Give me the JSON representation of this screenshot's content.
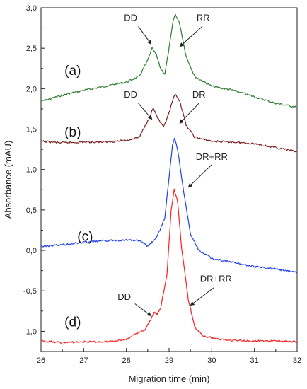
{
  "chart_data": {
    "type": "line",
    "xlabel": "Migration time (min)",
    "ylabel": "Absorbance (mAU)",
    "xlim": [
      26,
      32
    ],
    "ylim": [
      -1.25,
      3.0
    ],
    "x_ticks": [
      "26",
      "27",
      "28",
      "29",
      "30",
      "31",
      "32"
    ],
    "y_ticks": [
      {
        "v": -1.0,
        "label": "-1,0"
      },
      {
        "v": -0.5,
        "label": "-0,5"
      },
      {
        "v": 0.0,
        "label": "0,0"
      },
      {
        "v": 0.5,
        "label": "0,5"
      },
      {
        "v": 1.0,
        "label": "1,0"
      },
      {
        "v": 1.5,
        "label": "1,5"
      },
      {
        "v": 2.0,
        "label": "2,0"
      },
      {
        "v": 2.5,
        "label": "2,5"
      },
      {
        "v": 3.0,
        "label": "3,0"
      }
    ],
    "series": [
      {
        "label": "(a)",
        "color": "#2e7d32",
        "points": [
          [
            26.0,
            1.84
          ],
          [
            26.5,
            1.92
          ],
          [
            27.0,
            1.98
          ],
          [
            27.5,
            2.03
          ],
          [
            28.0,
            2.08
          ],
          [
            28.3,
            2.15
          ],
          [
            28.5,
            2.35
          ],
          [
            28.6,
            2.5
          ],
          [
            28.7,
            2.42
          ],
          [
            28.8,
            2.25
          ],
          [
            28.9,
            2.18
          ],
          [
            29.0,
            2.5
          ],
          [
            29.1,
            2.85
          ],
          [
            29.15,
            2.92
          ],
          [
            29.25,
            2.8
          ],
          [
            29.4,
            2.4
          ],
          [
            29.6,
            2.15
          ],
          [
            30.0,
            2.03
          ],
          [
            30.5,
            1.98
          ],
          [
            31.0,
            1.9
          ],
          [
            31.5,
            1.82
          ],
          [
            32.0,
            1.77
          ]
        ]
      },
      {
        "label": "(b)",
        "color": "#7b1f1f",
        "points": [
          [
            26.0,
            1.35
          ],
          [
            26.5,
            1.33
          ],
          [
            27.0,
            1.34
          ],
          [
            27.5,
            1.34
          ],
          [
            28.0,
            1.36
          ],
          [
            28.3,
            1.4
          ],
          [
            28.5,
            1.6
          ],
          [
            28.63,
            1.76
          ],
          [
            28.75,
            1.62
          ],
          [
            28.87,
            1.52
          ],
          [
            29.0,
            1.7
          ],
          [
            29.1,
            1.88
          ],
          [
            29.15,
            1.92
          ],
          [
            29.25,
            1.85
          ],
          [
            29.4,
            1.55
          ],
          [
            29.6,
            1.4
          ],
          [
            30.0,
            1.35
          ],
          [
            30.5,
            1.34
          ],
          [
            31.0,
            1.32
          ],
          [
            31.5,
            1.27
          ],
          [
            32.0,
            1.22
          ]
        ]
      },
      {
        "label": "(c)",
        "color": "#1f3ff0",
        "points": [
          [
            26.0,
            0.05
          ],
          [
            26.5,
            0.07
          ],
          [
            27.0,
            0.1
          ],
          [
            27.5,
            0.12
          ],
          [
            28.0,
            0.13
          ],
          [
            28.3,
            0.12
          ],
          [
            28.5,
            0.05
          ],
          [
            28.7,
            0.15
          ],
          [
            28.9,
            0.4
          ],
          [
            29.0,
            0.9
          ],
          [
            29.08,
            1.3
          ],
          [
            29.13,
            1.39
          ],
          [
            29.2,
            1.25
          ],
          [
            29.35,
            0.7
          ],
          [
            29.5,
            0.2
          ],
          [
            29.7,
            0.0
          ],
          [
            30.0,
            -0.1
          ],
          [
            30.5,
            -0.15
          ],
          [
            31.0,
            -0.2
          ],
          [
            31.5,
            -0.23
          ],
          [
            32.0,
            -0.27
          ]
        ]
      },
      {
        "label": "(d)",
        "color": "#ff2020",
        "points": [
          [
            26.0,
            -1.12
          ],
          [
            26.5,
            -1.14
          ],
          [
            27.0,
            -1.13
          ],
          [
            27.5,
            -1.13
          ],
          [
            28.0,
            -1.1
          ],
          [
            28.2,
            -1.03
          ],
          [
            28.4,
            -1.0
          ],
          [
            28.55,
            -0.88
          ],
          [
            28.65,
            -0.77
          ],
          [
            28.72,
            -0.79
          ],
          [
            28.8,
            -0.72
          ],
          [
            28.95,
            -0.3
          ],
          [
            29.05,
            0.5
          ],
          [
            29.12,
            0.75
          ],
          [
            29.2,
            0.6
          ],
          [
            29.3,
            0.0
          ],
          [
            29.45,
            -0.6
          ],
          [
            29.6,
            -0.95
          ],
          [
            29.8,
            -1.06
          ],
          [
            30.2,
            -1.1
          ],
          [
            30.5,
            -1.11
          ],
          [
            31.0,
            -1.12
          ],
          [
            31.5,
            -1.12
          ],
          [
            32.0,
            -1.13
          ]
        ]
      }
    ],
    "annotations": [
      {
        "text": "DD",
        "tx": 28.1,
        "ty": 2.84,
        "ax1": 28.28,
        "ay1": 2.77,
        "ax2": 28.58,
        "ay2": 2.55
      },
      {
        "text": "RR",
        "tx": 29.8,
        "ty": 2.84,
        "ax1": 29.78,
        "ay1": 2.77,
        "ax2": 29.25,
        "ay2": 2.52
      },
      {
        "text": "DD",
        "tx": 28.1,
        "ty": 1.89,
        "ax1": 28.28,
        "ay1": 1.82,
        "ax2": 28.6,
        "ay2": 1.62
      },
      {
        "text": "DR",
        "tx": 29.7,
        "ty": 1.89,
        "ax1": 29.7,
        "ay1": 1.82,
        "ax2": 29.25,
        "ay2": 1.57
      },
      {
        "text": "DR+RR",
        "tx": 30.0,
        "ty": 1.12,
        "ax1": 30.0,
        "ay1": 1.06,
        "ax2": 29.45,
        "ay2": 0.78
      },
      {
        "text": "DD",
        "tx": 27.95,
        "ty": -0.61,
        "ax1": 28.2,
        "ay1": -0.66,
        "ax2": 28.58,
        "ay2": -0.81
      },
      {
        "text": "DR+RR",
        "tx": 30.1,
        "ty": -0.39,
        "ax1": 30.05,
        "ay1": -0.46,
        "ax2": 29.5,
        "ay2": -0.68
      }
    ],
    "panel_labels": [
      {
        "text": "(a)",
        "x": 26.55,
        "y": 2.17
      },
      {
        "text": "(b)",
        "x": 26.55,
        "y": 1.41
      },
      {
        "text": "(c)",
        "x": 26.85,
        "y": 0.12
      },
      {
        "text": "(d)",
        "x": 26.55,
        "y": -0.94
      }
    ],
    "grid": false,
    "legend": "none"
  }
}
